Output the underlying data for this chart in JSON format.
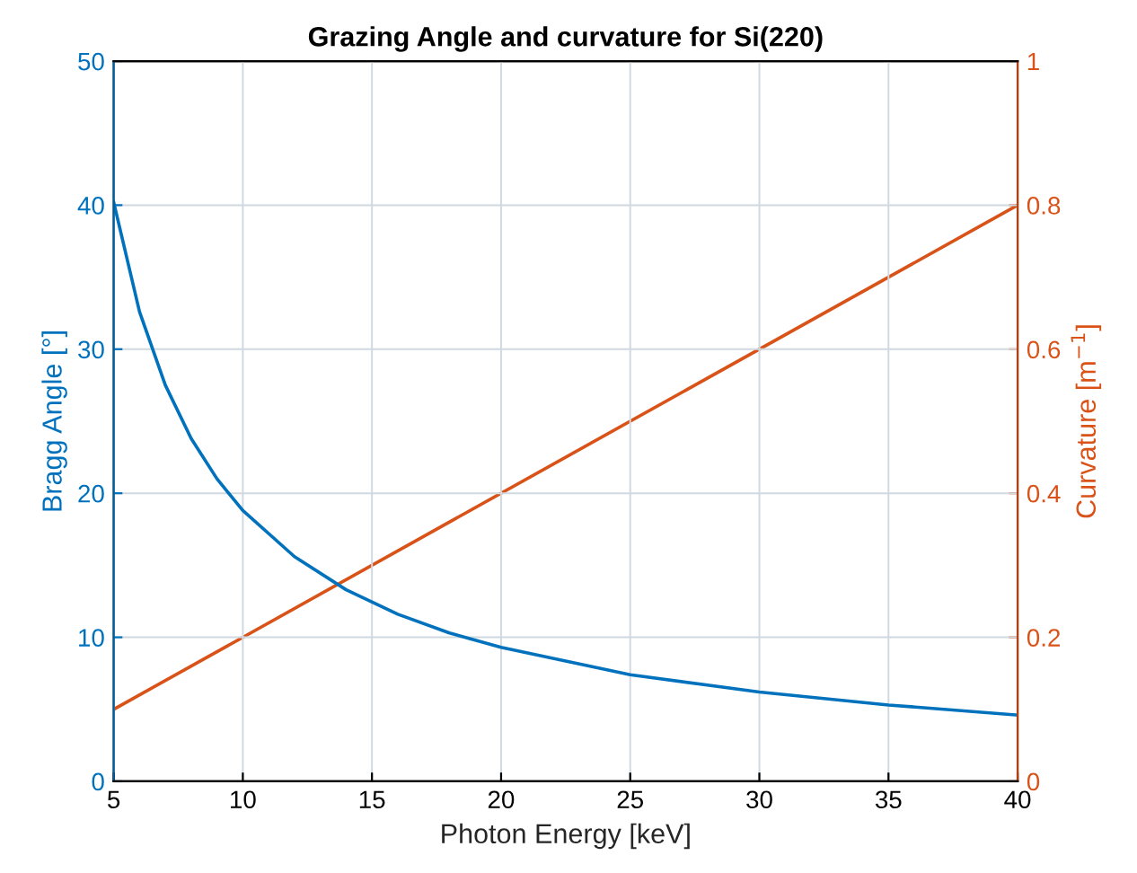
{
  "chart_data": {
    "type": "line",
    "title": "Grazing Angle and curvature for Si(220)",
    "xlabel": "Photon Energy [keV]",
    "ylabel": "Bragg Angle [°]",
    "y2label": "Curvature [m$^{−1}$]",
    "series": [
      {
        "color": "#0072bd",
        "x": [
          5,
          6,
          7,
          8,
          9,
          10,
          12,
          14,
          16,
          18,
          20,
          25,
          30,
          35,
          40
        ],
        "values": [
          40.2,
          32.6,
          27.5,
          23.8,
          21.0,
          18.8,
          15.6,
          13.3,
          11.6,
          10.3,
          9.3,
          7.4,
          6.2,
          5.3,
          4.6
        ]
      },
      {
        "color": "#d95319",
        "axis": "y2",
        "x": [
          5,
          40
        ],
        "values": [
          0.1,
          0.8
        ]
      }
    ],
    "xlim": [
      5,
      40
    ],
    "xticks": [
      5,
      10,
      15,
      20,
      25,
      30,
      35,
      40
    ],
    "ylim": [
      0,
      50
    ],
    "yticks": [
      0,
      10,
      20,
      30,
      40,
      50
    ],
    "y2lim": [
      0,
      1
    ],
    "y2ticks": [
      0,
      0.2,
      0.4,
      0.6,
      0.8,
      1
    ],
    "grid": true
  }
}
